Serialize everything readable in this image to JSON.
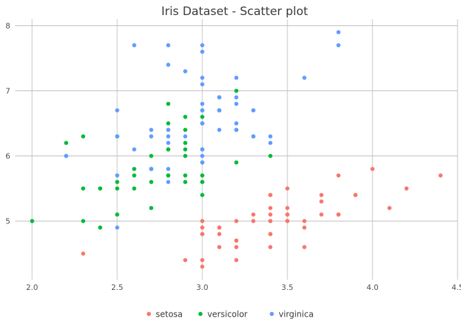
{
  "chart_data": {
    "type": "scatter",
    "title": "Iris Dataset - Scatter plot",
    "xlabel": "",
    "ylabel": "",
    "xlim": [
      1.9,
      4.5
    ],
    "ylim": [
      4.1,
      8.1
    ],
    "x_ticks": [
      2.0,
      2.5,
      3.0,
      3.5,
      4.0,
      4.5
    ],
    "x_tick_labels": [
      "2.0",
      "2.5",
      "3.0",
      "3.5",
      "4.0",
      "4.5"
    ],
    "y_ticks": [
      5,
      6,
      7,
      8
    ],
    "y_tick_labels": [
      "5",
      "6",
      "7",
      "8"
    ],
    "grid": true,
    "legend_position": "bottom",
    "series": [
      {
        "name": "setosa",
        "color": "#F8766D",
        "points": [
          [
            3.5,
            5.1
          ],
          [
            3.0,
            4.9
          ],
          [
            3.2,
            4.7
          ],
          [
            3.1,
            4.6
          ],
          [
            3.6,
            5.0
          ],
          [
            3.9,
            5.4
          ],
          [
            3.4,
            4.6
          ],
          [
            3.4,
            5.0
          ],
          [
            2.9,
            4.4
          ],
          [
            3.1,
            4.9
          ],
          [
            3.7,
            5.4
          ],
          [
            3.4,
            4.8
          ],
          [
            3.0,
            4.8
          ],
          [
            3.0,
            4.3
          ],
          [
            4.0,
            5.8
          ],
          [
            4.4,
            5.7
          ],
          [
            3.9,
            5.4
          ],
          [
            3.5,
            5.1
          ],
          [
            3.8,
            5.7
          ],
          [
            3.8,
            5.1
          ],
          [
            3.4,
            5.4
          ],
          [
            3.7,
            5.1
          ],
          [
            3.6,
            4.6
          ],
          [
            3.3,
            5.1
          ],
          [
            3.4,
            4.8
          ],
          [
            3.0,
            5.0
          ],
          [
            3.4,
            5.0
          ],
          [
            3.5,
            5.2
          ],
          [
            3.4,
            5.2
          ],
          [
            3.2,
            4.7
          ],
          [
            3.1,
            4.8
          ],
          [
            3.4,
            5.4
          ],
          [
            4.1,
            5.2
          ],
          [
            4.2,
            5.5
          ],
          [
            3.1,
            4.9
          ],
          [
            3.2,
            5.0
          ],
          [
            3.5,
            5.5
          ],
          [
            3.6,
            4.9
          ],
          [
            3.0,
            4.4
          ],
          [
            3.4,
            5.1
          ],
          [
            3.5,
            5.0
          ],
          [
            2.3,
            4.5
          ],
          [
            3.2,
            4.4
          ],
          [
            3.5,
            5.0
          ],
          [
            3.8,
            5.1
          ],
          [
            3.0,
            4.8
          ],
          [
            3.8,
            5.1
          ],
          [
            3.2,
            4.6
          ],
          [
            3.7,
            5.3
          ],
          [
            3.3,
            5.0
          ]
        ]
      },
      {
        "name": "versicolor",
        "color": "#00BA38",
        "points": [
          [
            3.2,
            7.0
          ],
          [
            3.2,
            6.4
          ],
          [
            3.1,
            6.9
          ],
          [
            2.3,
            5.5
          ],
          [
            2.8,
            6.5
          ],
          [
            2.8,
            5.7
          ],
          [
            3.3,
            6.3
          ],
          [
            2.4,
            4.9
          ],
          [
            2.9,
            6.6
          ],
          [
            2.7,
            5.2
          ],
          [
            2.0,
            5.0
          ],
          [
            3.0,
            5.9
          ],
          [
            2.2,
            6.0
          ],
          [
            2.9,
            6.1
          ],
          [
            2.9,
            5.6
          ],
          [
            3.1,
            6.7
          ],
          [
            3.0,
            5.6
          ],
          [
            2.7,
            5.8
          ],
          [
            2.2,
            6.2
          ],
          [
            2.5,
            5.6
          ],
          [
            3.2,
            5.9
          ],
          [
            2.8,
            6.1
          ],
          [
            2.5,
            6.3
          ],
          [
            2.8,
            6.1
          ],
          [
            2.9,
            6.4
          ],
          [
            3.0,
            6.6
          ],
          [
            2.8,
            6.8
          ],
          [
            3.0,
            6.7
          ],
          [
            2.9,
            6.0
          ],
          [
            2.6,
            5.7
          ],
          [
            2.4,
            5.5
          ],
          [
            2.4,
            5.5
          ],
          [
            2.7,
            5.8
          ],
          [
            2.7,
            6.0
          ],
          [
            3.0,
            5.4
          ],
          [
            3.4,
            6.0
          ],
          [
            3.1,
            6.7
          ],
          [
            2.3,
            6.3
          ],
          [
            3.0,
            5.6
          ],
          [
            2.5,
            5.5
          ],
          [
            2.6,
            5.5
          ],
          [
            3.0,
            6.1
          ],
          [
            2.6,
            5.8
          ],
          [
            2.3,
            5.0
          ],
          [
            2.7,
            5.6
          ],
          [
            3.0,
            5.7
          ],
          [
            2.9,
            5.7
          ],
          [
            2.9,
            6.2
          ],
          [
            2.5,
            5.1
          ],
          [
            2.8,
            5.7
          ]
        ]
      },
      {
        "name": "virginica",
        "color": "#619CFF",
        "points": [
          [
            3.3,
            6.3
          ],
          [
            2.7,
            5.8
          ],
          [
            3.0,
            7.1
          ],
          [
            2.9,
            6.3
          ],
          [
            3.0,
            6.5
          ],
          [
            3.0,
            7.6
          ],
          [
            2.5,
            4.9
          ],
          [
            2.9,
            7.3
          ],
          [
            2.5,
            6.7
          ],
          [
            3.6,
            7.2
          ],
          [
            3.2,
            6.5
          ],
          [
            2.7,
            6.4
          ],
          [
            3.0,
            6.8
          ],
          [
            2.5,
            5.7
          ],
          [
            2.8,
            5.8
          ],
          [
            3.2,
            6.4
          ],
          [
            3.0,
            6.5
          ],
          [
            3.8,
            7.7
          ],
          [
            2.6,
            7.7
          ],
          [
            2.2,
            6.0
          ],
          [
            3.2,
            6.9
          ],
          [
            2.8,
            5.6
          ],
          [
            2.8,
            7.7
          ],
          [
            2.7,
            6.3
          ],
          [
            3.3,
            6.7
          ],
          [
            3.2,
            7.2
          ],
          [
            2.8,
            6.2
          ],
          [
            3.0,
            6.1
          ],
          [
            2.8,
            6.4
          ],
          [
            3.0,
            7.2
          ],
          [
            2.8,
            7.4
          ],
          [
            3.8,
            7.9
          ],
          [
            2.8,
            6.4
          ],
          [
            2.8,
            6.3
          ],
          [
            2.6,
            6.1
          ],
          [
            3.0,
            7.7
          ],
          [
            3.4,
            6.3
          ],
          [
            3.1,
            6.4
          ],
          [
            3.0,
            6.0
          ],
          [
            3.1,
            6.9
          ],
          [
            3.1,
            6.7
          ],
          [
            3.1,
            6.9
          ],
          [
            2.7,
            5.8
          ],
          [
            3.2,
            6.8
          ],
          [
            3.3,
            6.7
          ],
          [
            3.0,
            6.7
          ],
          [
            2.5,
            6.3
          ],
          [
            3.0,
            6.5
          ],
          [
            3.4,
            6.2
          ],
          [
            3.0,
            5.9
          ]
        ]
      }
    ]
  }
}
